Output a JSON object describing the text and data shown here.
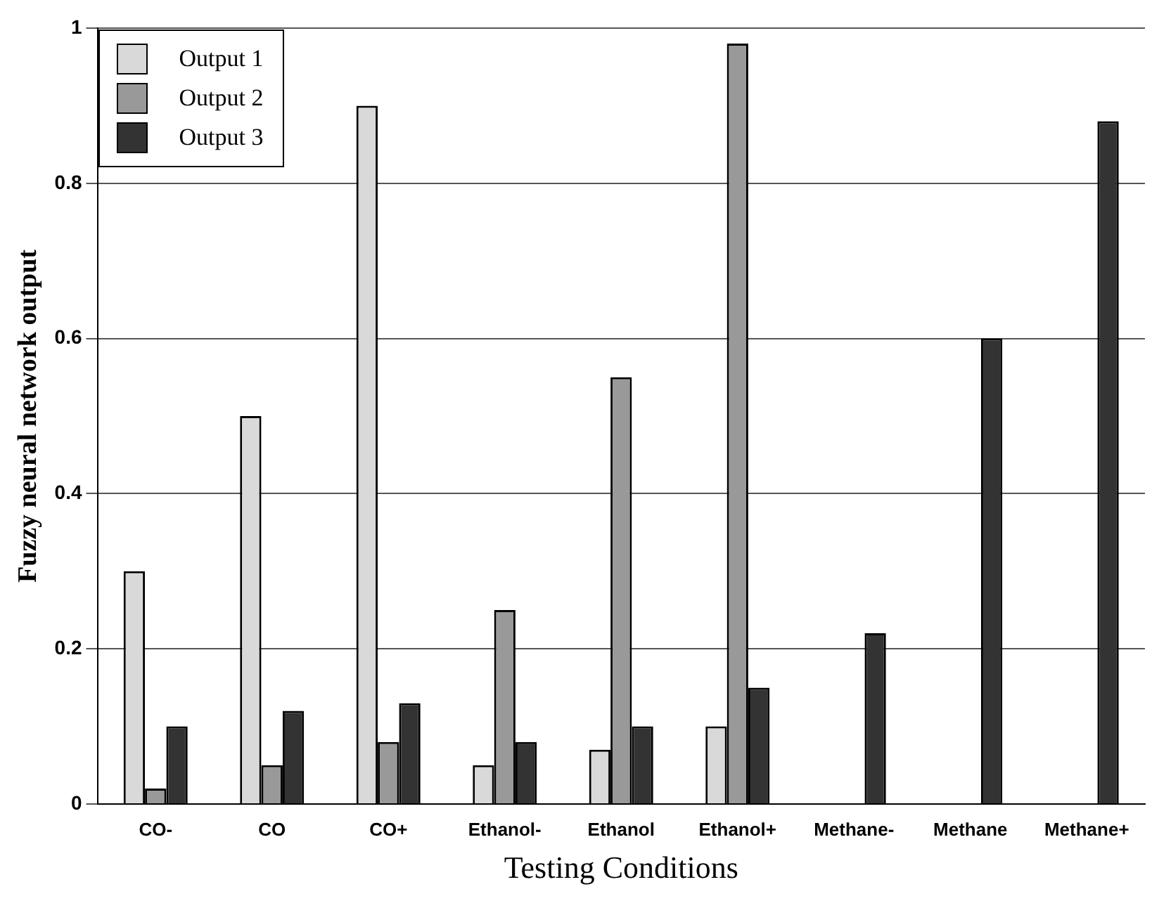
{
  "chart_data": {
    "type": "bar",
    "xlabel": "Testing Conditions",
    "ylabel": "Fuzzy neural network output",
    "categories": [
      "CO-",
      "CO",
      "CO+",
      "Ethanol-",
      "Ethanol",
      "Ethanol+",
      "Methane-",
      "Methane",
      "Methane+"
    ],
    "series": [
      {
        "name": "Output 1",
        "color": "#d9d9d9",
        "values": [
          0.3,
          0.5,
          0.9,
          0.05,
          0.07,
          0.1,
          0,
          0,
          0
        ]
      },
      {
        "name": "Output 2",
        "color": "#999999",
        "values": [
          0.02,
          0.05,
          0.08,
          0.25,
          0.55,
          0.98,
          0,
          0,
          0
        ]
      },
      {
        "name": "Output 3",
        "color": "#333333",
        "values": [
          0.1,
          0.12,
          0.13,
          0.08,
          0.1,
          0.15,
          0.22,
          0.6,
          0.88
        ]
      }
    ],
    "ylim": [
      0,
      1
    ],
    "yticks": [
      0,
      0.2,
      0.4,
      0.6,
      0.8,
      1
    ],
    "grid": "y",
    "legend": "top left"
  }
}
